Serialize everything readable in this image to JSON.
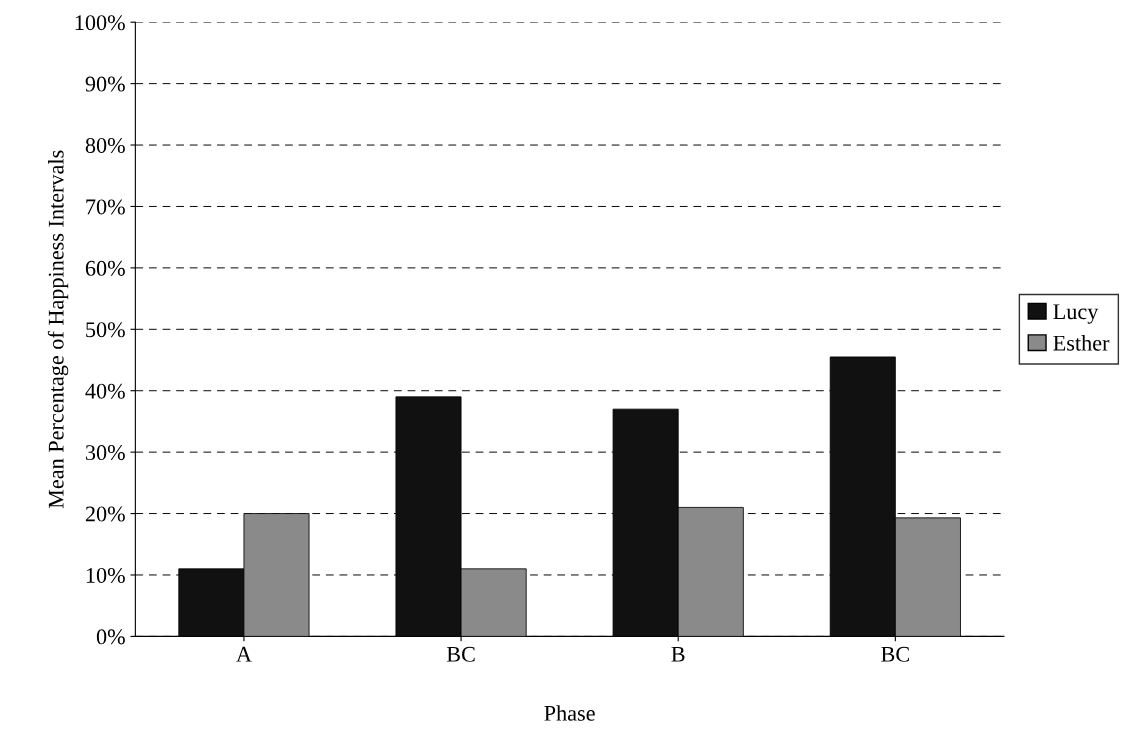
{
  "chart_data": {
    "type": "bar",
    "xlabel": "Phase",
    "ylabel": "Mean Percentage of Happiness Intervals",
    "categories": [
      "A",
      "BC",
      "B",
      "BC"
    ],
    "series": [
      {
        "name": "Lucy",
        "color": "#111111",
        "values": [
          11,
          39,
          37,
          45.5
        ]
      },
      {
        "name": "Esther",
        "color": "#8a8a8a",
        "values": [
          20,
          11,
          21,
          19.3
        ]
      }
    ],
    "ylim": [
      0,
      100
    ],
    "yticks": [
      {
        "value": 0,
        "label": "0%"
      },
      {
        "value": 10,
        "label": "10%"
      },
      {
        "value": 20,
        "label": "20%"
      },
      {
        "value": 30,
        "label": "30%"
      },
      {
        "value": 40,
        "label": "40%"
      },
      {
        "value": 50,
        "label": "50%"
      },
      {
        "value": 60,
        "label": "60%"
      },
      {
        "value": 70,
        "label": "70%"
      },
      {
        "value": 80,
        "label": "80%"
      },
      {
        "value": 90,
        "label": "90%"
      },
      {
        "value": 100,
        "label": "100%"
      }
    ],
    "grid": "y",
    "line_style": "dashed",
    "legend": "right"
  }
}
